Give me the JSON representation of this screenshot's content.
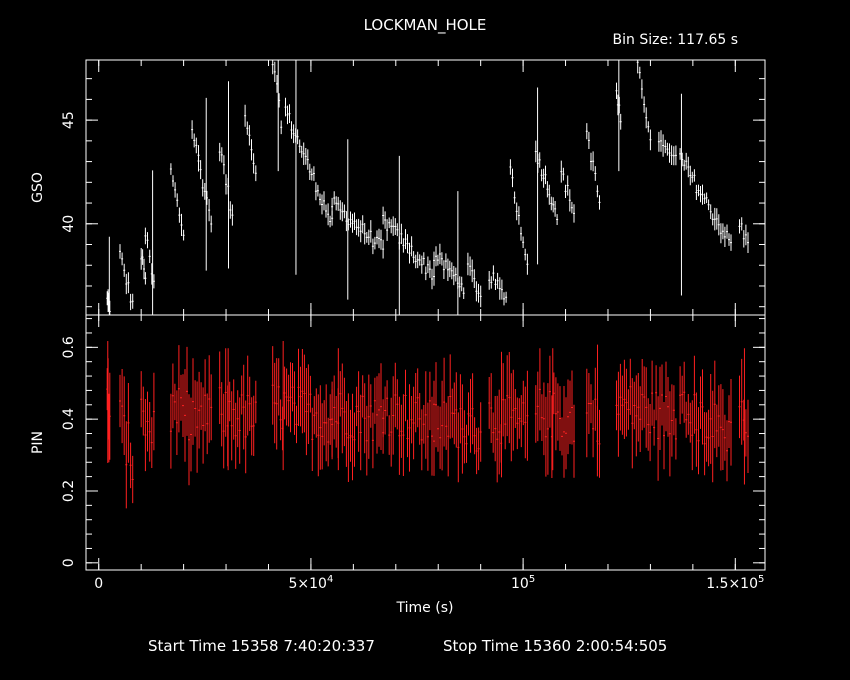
{
  "chart_data": {
    "type": "line",
    "title": "LOCKMAN_HOLE",
    "bin_size_label": "Bin Size: 117.65 s",
    "xlabel": "Time (s)",
    "xlim": [
      -3000,
      157000
    ],
    "x_ticks": [
      {
        "value": 0,
        "label": "0"
      },
      {
        "value": 50000,
        "label": "5×10^4"
      },
      {
        "value": 100000,
        "label": "10^5"
      },
      {
        "value": 150000,
        "label": "1.5×10^5"
      }
    ],
    "footer": {
      "start": "Start Time 15358  7:40:20:337",
      "stop": "Stop Time 15360  2:00:54:505"
    },
    "panels": [
      {
        "name": "gso",
        "ylabel": "GSO",
        "ylim": [
          35.6,
          47.9
        ],
        "y_ticks": [
          40,
          45
        ],
        "color": "#ffffff",
        "segments": [
          {
            "x0": 2000,
            "x1": 2600,
            "y0": 36.3,
            "y1": 36.0
          },
          {
            "x0": 5000,
            "x1": 8000,
            "y0": 38.5,
            "y1": 36.1
          },
          {
            "x0": 10000,
            "x1": 11000,
            "y0": 38.4,
            "y1": 37.6
          },
          {
            "x0": 11000,
            "x1": 13000,
            "y0": 39.5,
            "y1": 37.0
          },
          {
            "x0": 17000,
            "x1": 20000,
            "y0": 42.5,
            "y1": 39.5
          },
          {
            "x0": 22000,
            "x1": 23500,
            "y0": 44.8,
            "y1": 43.5
          },
          {
            "x0": 23500,
            "x1": 26500,
            "y0": 43.0,
            "y1": 40.2
          },
          {
            "x0": 28500,
            "x1": 31500,
            "y0": 43.8,
            "y1": 40.3
          },
          {
            "x0": 34500,
            "x1": 37000,
            "y0": 45.5,
            "y1": 42.5
          },
          {
            "x0": 41000,
            "x1": 43000,
            "y0": 47.8,
            "y1": 45.0
          },
          {
            "x0": 44000,
            "x1": 55000,
            "y0": 45.5,
            "y1": 40.0
          },
          {
            "x0": 55000,
            "x1": 67000,
            "y0": 41.0,
            "y1": 38.8
          },
          {
            "x0": 67000,
            "x1": 79000,
            "y0": 40.2,
            "y1": 37.5
          },
          {
            "x0": 79000,
            "x1": 86000,
            "y0": 38.5,
            "y1": 37.0
          },
          {
            "x0": 87000,
            "x1": 90000,
            "y0": 38.0,
            "y1": 36.5
          },
          {
            "x0": 92000,
            "x1": 96000,
            "y0": 37.6,
            "y1": 36.3
          },
          {
            "x0": 97000,
            "x1": 101000,
            "y0": 42.5,
            "y1": 38.2
          },
          {
            "x0": 103000,
            "x1": 108000,
            "y0": 43.5,
            "y1": 40.5
          },
          {
            "x0": 109000,
            "x1": 112000,
            "y0": 42.5,
            "y1": 40.6
          },
          {
            "x0": 115000,
            "x1": 118000,
            "y0": 44.5,
            "y1": 41.0
          },
          {
            "x0": 122000,
            "x1": 123000,
            "y0": 46.2,
            "y1": 45.0
          },
          {
            "x0": 127000,
            "x1": 130000,
            "y0": 47.5,
            "y1": 44.3
          },
          {
            "x0": 132000,
            "x1": 136000,
            "y0": 44.3,
            "y1": 43.0
          },
          {
            "x0": 137000,
            "x1": 149000,
            "y0": 43.2,
            "y1": 39.0
          },
          {
            "x0": 151000,
            "x1": 153000,
            "y0": 40.0,
            "y1": 39.0
          }
        ]
      },
      {
        "name": "pin",
        "ylabel": "PIN",
        "ylim": [
          -0.02,
          0.69
        ],
        "y_ticks": [
          0,
          0.2,
          0.4,
          0.6
        ],
        "color": "#ff2020",
        "segments": [
          {
            "x0": 2000,
            "x1": 2600,
            "y0": 0.44,
            "y1": 0.42
          },
          {
            "x0": 5000,
            "x1": 8000,
            "y0": 0.4,
            "y1": 0.28
          },
          {
            "x0": 10000,
            "x1": 13000,
            "y0": 0.4,
            "y1": 0.36
          },
          {
            "x0": 17000,
            "x1": 26500,
            "y0": 0.42,
            "y1": 0.4
          },
          {
            "x0": 28500,
            "x1": 37000,
            "y0": 0.42,
            "y1": 0.4
          },
          {
            "x0": 41000,
            "x1": 55000,
            "y0": 0.44,
            "y1": 0.4
          },
          {
            "x0": 55000,
            "x1": 67000,
            "y0": 0.42,
            "y1": 0.4
          },
          {
            "x0": 67000,
            "x1": 79000,
            "y0": 0.43,
            "y1": 0.38
          },
          {
            "x0": 79000,
            "x1": 90000,
            "y0": 0.42,
            "y1": 0.36
          },
          {
            "x0": 92000,
            "x1": 101000,
            "y0": 0.41,
            "y1": 0.38
          },
          {
            "x0": 103000,
            "x1": 112000,
            "y0": 0.42,
            "y1": 0.4
          },
          {
            "x0": 115000,
            "x1": 118000,
            "y0": 0.43,
            "y1": 0.4
          },
          {
            "x0": 122000,
            "x1": 136000,
            "y0": 0.44,
            "y1": 0.4
          },
          {
            "x0": 137000,
            "x1": 149000,
            "y0": 0.42,
            "y1": 0.36
          },
          {
            "x0": 151000,
            "x1": 153000,
            "y0": 0.42,
            "y1": 0.36
          }
        ]
      }
    ]
  }
}
